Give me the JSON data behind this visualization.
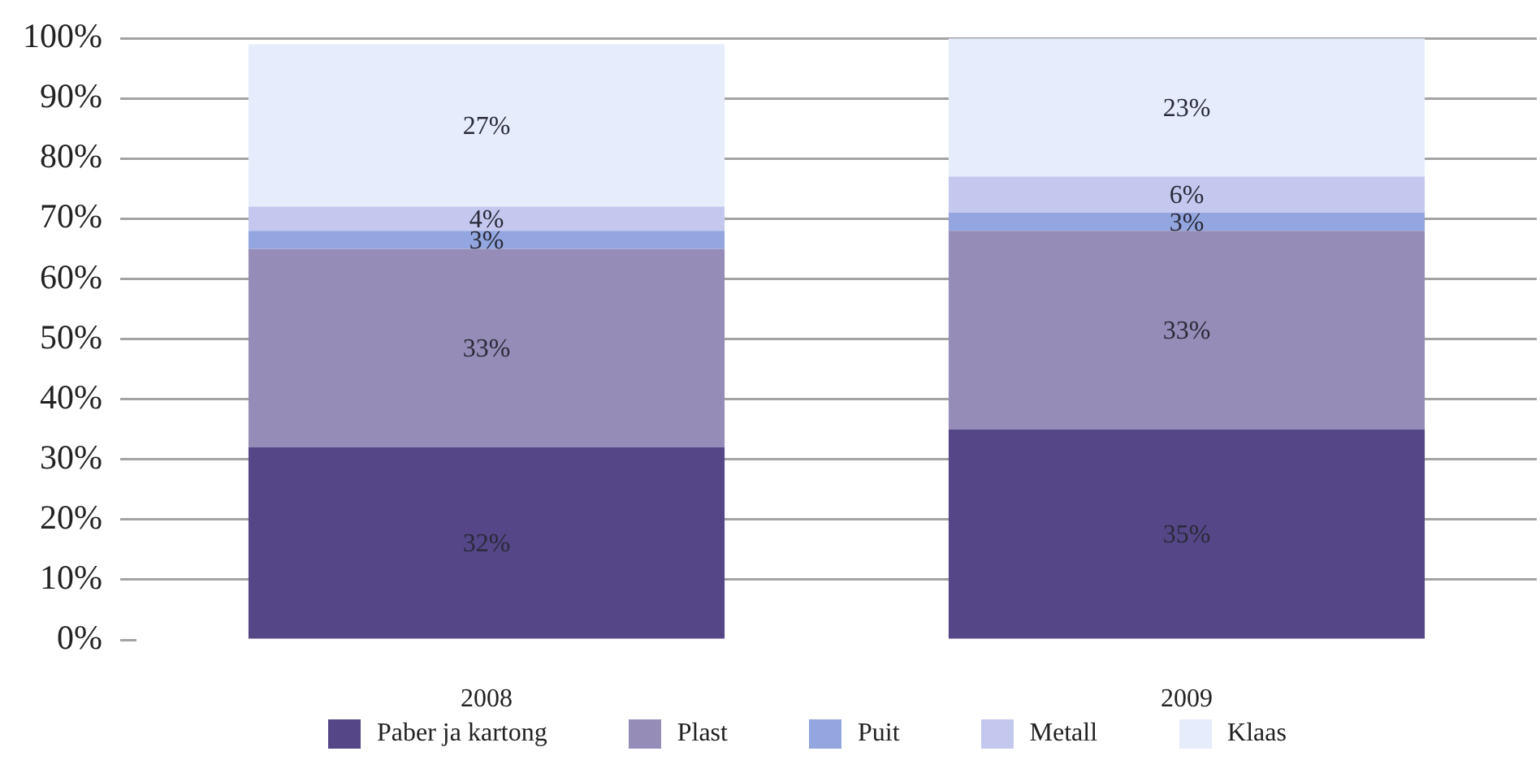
{
  "chart_data": {
    "type": "bar",
    "stacked": true,
    "categories": [
      "2008",
      "2009"
    ],
    "series": [
      {
        "name": "Paber ja kartong",
        "color": "#554688",
        "values": [
          32,
          35
        ],
        "value_labels": [
          "32%",
          "35%"
        ]
      },
      {
        "name": "Plast",
        "color": "#958db8",
        "values": [
          33,
          33
        ],
        "value_labels": [
          "33%",
          "33%"
        ]
      },
      {
        "name": "Puit",
        "color": "#93a6df",
        "values": [
          3,
          3
        ],
        "value_labels": [
          "3%",
          "3%"
        ]
      },
      {
        "name": "Metall",
        "color": "#c4c8ef",
        "values": [
          4,
          6
        ],
        "value_labels": [
          "4%",
          "6%"
        ]
      },
      {
        "name": "Klaas",
        "color": "#e6ecfc",
        "values": [
          27,
          23
        ],
        "value_labels": [
          "27%",
          "23%"
        ]
      }
    ],
    "ylim": [
      0,
      100
    ],
    "yticks": [
      {
        "value": 0,
        "label": "0%"
      },
      {
        "value": 10,
        "label": "10%"
      },
      {
        "value": 20,
        "label": "20%"
      },
      {
        "value": 30,
        "label": "30%"
      },
      {
        "value": 40,
        "label": "40%"
      },
      {
        "value": 50,
        "label": "50%"
      },
      {
        "value": 60,
        "label": "60%"
      },
      {
        "value": 70,
        "label": "70%"
      },
      {
        "value": 80,
        "label": "80%"
      },
      {
        "value": 90,
        "label": "90%"
      },
      {
        "value": 100,
        "label": "100%"
      }
    ],
    "grid": "y",
    "legend": "bottom"
  }
}
